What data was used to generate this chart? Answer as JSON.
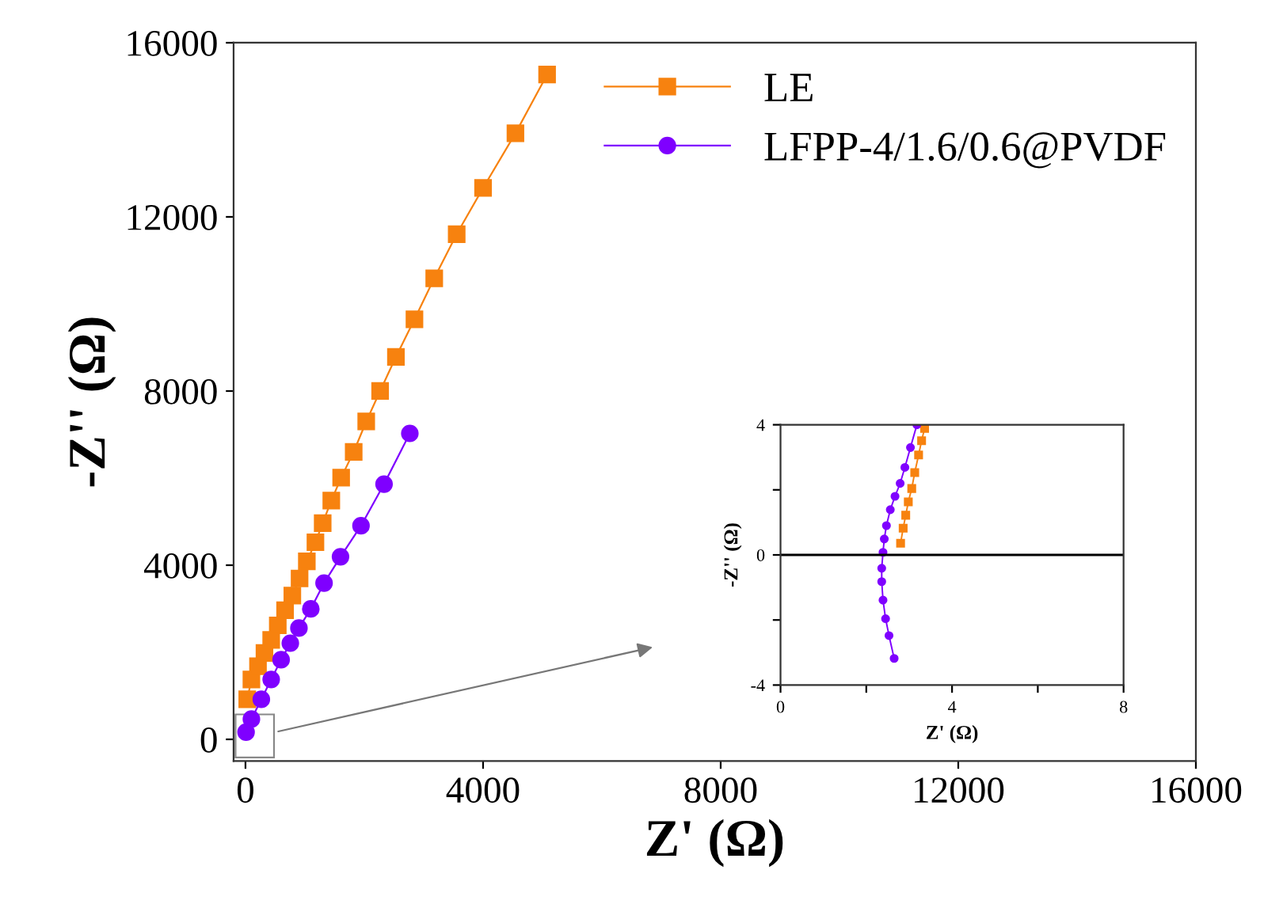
{
  "chart_data": [
    {
      "type": "line",
      "xlabel": "Z' (Ω)",
      "ylabel": "-Z'' (Ω)",
      "xlim": [
        -200,
        16000
      ],
      "ylim": [
        -500,
        16000
      ],
      "xticks": [
        0,
        4000,
        8000,
        12000,
        16000
      ],
      "yticks": [
        0,
        4000,
        8000,
        12000,
        16000
      ],
      "legend": "top right",
      "grid": false,
      "series": [
        {
          "name": "LE",
          "color": "#f7820f",
          "marker": "square",
          "x": [
            30,
            100,
            211,
            320,
            433,
            544,
            667,
            789,
            911,
            1033,
            1178,
            1300,
            1445,
            1611,
            1822,
            2033,
            2267,
            2533,
            2845,
            3178,
            3556,
            4000,
            4545,
            5078
          ],
          "values": [
            920,
            1375,
            1680,
            1982,
            2284,
            2618,
            2967,
            3300,
            3695,
            4087,
            4527,
            4967,
            5482,
            6011,
            6604,
            7300,
            8000,
            8785,
            9647,
            10589,
            11604,
            12664,
            13920,
            15270
          ]
        },
        {
          "name": "LFPP-4/1.6/0.6@PVDF",
          "color": "#7f00ff",
          "marker": "circle",
          "x": [
            10,
            100,
            267,
            433,
            600,
            755,
            900,
            1100,
            1323,
            1600,
            1945,
            2333,
            2767
          ],
          "values": [
            164,
            465,
            920,
            1375,
            1829,
            2209,
            2556,
            2996,
            3589,
            4193,
            4905,
            5862,
            7027
          ]
        }
      ]
    },
    {
      "type": "line",
      "xlabel": "Z' (Ω)",
      "ylabel": "-Z'' (Ω)",
      "xlim": [
        0,
        8
      ],
      "ylim": [
        -4,
        4
      ],
      "xticks": [
        0,
        {
          "value": 2,
          "label": null
        },
        4,
        {
          "value": 6,
          "label": null
        },
        8
      ],
      "yticks": [
        -4,
        {
          "value": -2,
          "label": null
        },
        0,
        {
          "value": 2,
          "label": null
        },
        4
      ],
      "legend": false,
      "grid": false,
      "ref_lines": [
        {
          "axis": "y",
          "value": 0,
          "color": "#000000"
        }
      ],
      "series": [
        {
          "color": "#f7820f",
          "marker": "square",
          "x": [
            2.8,
            2.86,
            2.92,
            2.98,
            3.06,
            3.13,
            3.22,
            3.29,
            3.36
          ],
          "values": [
            0.36,
            0.82,
            1.22,
            1.63,
            2.04,
            2.53,
            3.07,
            3.51,
            3.89
          ]
        },
        {
          "color": "#7f00ff",
          "marker": "circle",
          "x": [
            2.65,
            2.53,
            2.45,
            2.39,
            2.36,
            2.36,
            2.39,
            2.42,
            2.47,
            2.56,
            2.67,
            2.79,
            2.9,
            3.03,
            3.18
          ],
          "values": [
            -3.18,
            -2.48,
            -1.96,
            -1.39,
            -0.82,
            -0.41,
            0.08,
            0.49,
            0.9,
            1.39,
            1.8,
            2.2,
            2.69,
            3.3,
            4.0
          ]
        }
      ]
    }
  ]
}
